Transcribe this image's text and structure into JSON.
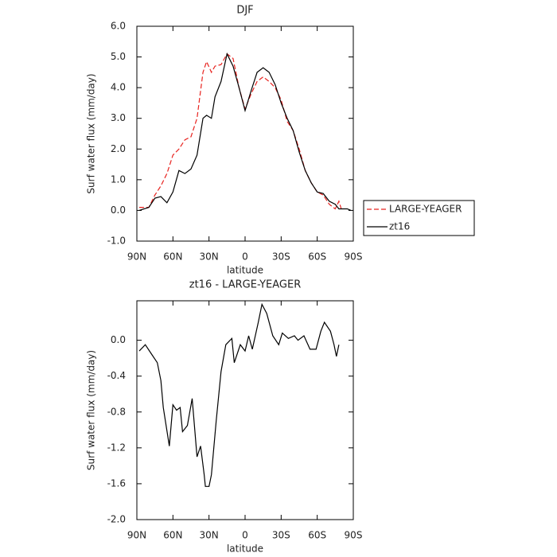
{
  "chart_data": [
    {
      "type": "line",
      "title": "DJF",
      "xlabel": "latitude",
      "ylabel": "Surf water flux (mm/day)",
      "x": [
        88,
        80,
        75,
        70,
        65,
        60,
        55,
        50,
        45,
        40,
        35,
        32,
        28,
        25,
        20,
        15,
        10,
        5,
        0,
        -5,
        -10,
        -15,
        -20,
        -25,
        -30,
        -35,
        -40,
        -45,
        -50,
        -55,
        -60,
        -65,
        -70,
        -75,
        -78,
        -80,
        -85,
        -88
      ],
      "xlim": [
        90,
        -90
      ],
      "xticks": [
        {
          "value": 90,
          "label": "90N"
        },
        {
          "value": 60,
          "label": "60N"
        },
        {
          "value": 30,
          "label": "30N"
        },
        0,
        {
          "value": -30,
          "label": "30S"
        },
        {
          "value": -60,
          "label": "60S"
        },
        {
          "value": -90,
          "label": "90S"
        }
      ],
      "ylim": [
        -1,
        6
      ],
      "yticks": [
        {
          "value": -1,
          "label": "-1.0"
        },
        {
          "value": 0,
          "label": "0.0"
        },
        {
          "value": 1,
          "label": "1.0"
        },
        {
          "value": 2,
          "label": "2.0"
        },
        {
          "value": 3,
          "label": "3.0"
        },
        {
          "value": 4,
          "label": "4.0"
        },
        {
          "value": 5,
          "label": "5.0"
        },
        {
          "value": 6,
          "label": "6.0"
        }
      ],
      "legend": "right",
      "series": [
        {
          "name": "LARGE-YEAGER",
          "color": "#e8231f",
          "line_style": "dashed",
          "values": [
            0.1,
            0.1,
            0.5,
            0.8,
            1.2,
            1.8,
            2.0,
            2.3,
            2.4,
            3.0,
            4.5,
            4.85,
            4.5,
            4.7,
            4.75,
            5.1,
            4.95,
            4.0,
            3.3,
            3.8,
            4.2,
            4.35,
            4.2,
            4.0,
            3.6,
            2.9,
            2.6,
            2.0,
            1.3,
            0.9,
            0.6,
            0.5,
            0.2,
            0.05,
            0.3,
            0.05,
            null,
            null
          ]
        },
        {
          "name": "zt16",
          "color": "#000000",
          "line_style": "solid",
          "values": [
            0.0,
            0.1,
            0.4,
            0.45,
            0.25,
            0.6,
            1.3,
            1.2,
            1.35,
            1.8,
            3.0,
            3.1,
            3.0,
            3.7,
            4.2,
            5.1,
            4.7,
            4.0,
            3.25,
            3.9,
            4.5,
            4.65,
            4.5,
            4.1,
            3.5,
            3.0,
            2.6,
            1.9,
            1.3,
            0.9,
            0.6,
            0.55,
            0.3,
            0.2,
            0.05,
            0.05,
            0.05,
            0.0
          ]
        }
      ]
    },
    {
      "type": "line",
      "title": "zt16 - LARGE-YEAGER",
      "xlabel": "latitude",
      "ylabel": "Surf water flux (mm/day)",
      "x": [
        88,
        83,
        78,
        73,
        70,
        68,
        63,
        60,
        57,
        54,
        52,
        48,
        44,
        40,
        37,
        34,
        33,
        30,
        28,
        24,
        20,
        16,
        11,
        9,
        4,
        0,
        -3,
        -6,
        -11,
        -14,
        -18,
        -23,
        -28,
        -31,
        -36,
        -41,
        -44,
        -49,
        -54,
        -59,
        -63,
        -66,
        -71,
        -74,
        -76,
        -78
      ],
      "xlim": [
        90,
        -90
      ],
      "xticks": [
        {
          "value": 90,
          "label": "90N"
        },
        {
          "value": 60,
          "label": "60N"
        },
        {
          "value": 30,
          "label": "30N"
        },
        0,
        {
          "value": -30,
          "label": "30S"
        },
        {
          "value": -60,
          "label": "60S"
        },
        {
          "value": -90,
          "label": "90S"
        }
      ],
      "ylim": [
        -2,
        0.44
      ],
      "yticks": [
        {
          "value": -2,
          "label": "-2.0"
        },
        -1.6,
        -1.2,
        -0.8,
        -0.4,
        {
          "value": 0,
          "label": "0.0"
        }
      ],
      "series": [
        {
          "color": "#000000",
          "line_style": "solid",
          "values": [
            -0.12,
            -0.05,
            -0.15,
            -0.25,
            -0.45,
            -0.75,
            -1.18,
            -0.72,
            -0.78,
            -0.75,
            -1.02,
            -0.95,
            -0.65,
            -1.3,
            -1.18,
            -1.5,
            -1.63,
            -1.63,
            -1.5,
            -0.9,
            -0.35,
            -0.05,
            0.02,
            -0.25,
            -0.05,
            -0.12,
            0.05,
            -0.1,
            0.2,
            0.4,
            0.3,
            0.05,
            -0.05,
            0.08,
            0.02,
            0.05,
            0.0,
            0.05,
            -0.1,
            -0.1,
            0.1,
            0.2,
            0.1,
            -0.05,
            -0.18,
            -0.05
          ]
        }
      ]
    }
  ]
}
